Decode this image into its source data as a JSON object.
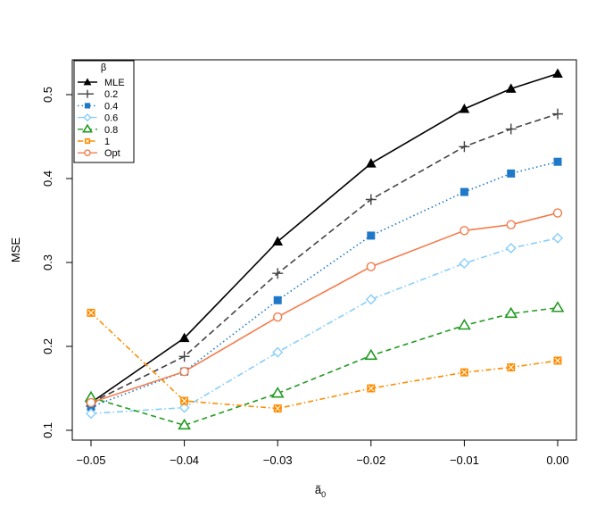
{
  "chart_data": {
    "type": "line",
    "title": "",
    "xlabel": "ã0",
    "xlabel_main": "ã",
    "xlabel_sub": "0",
    "ylabel": "MSE",
    "xlim": [
      -0.05,
      0.0
    ],
    "ylim": [
      0.1,
      0.53
    ],
    "x": [
      -0.05,
      -0.04,
      -0.03,
      -0.02,
      -0.01,
      -0.005,
      0.0
    ],
    "x_ticks": [
      -0.05,
      -0.04,
      -0.03,
      -0.02,
      -0.01,
      0.0
    ],
    "x_tick_labels": [
      "−0.05",
      "−0.04",
      "−0.03",
      "−0.02",
      "−0.01",
      "0.00"
    ],
    "y_ticks": [
      0.1,
      0.2,
      0.3,
      0.4,
      0.5
    ],
    "y_tick_labels": [
      "0.1",
      "0.2",
      "0.3",
      "0.4",
      "0.5"
    ],
    "legend_title": "β",
    "legend_position": "top-left",
    "series": [
      {
        "name": "MLE",
        "color": "#000000",
        "dash": "",
        "marker": "triangle-filled",
        "values": [
          0.133,
          0.21,
          0.325,
          0.418,
          0.483,
          0.507,
          0.525
        ]
      },
      {
        "name": "0.2",
        "color": "#444444",
        "dash": "7,4",
        "marker": "plus",
        "values": [
          0.133,
          0.188,
          0.287,
          0.375,
          0.438,
          0.459,
          0.477
        ]
      },
      {
        "name": "0.4",
        "color": "#1f78c8",
        "dash": "1.5,3",
        "marker": "square-filled",
        "values": [
          0.128,
          0.17,
          0.255,
          0.332,
          0.384,
          0.406,
          0.42
        ]
      },
      {
        "name": "0.6",
        "color": "#87cefa",
        "dash": "7,3,1.5,3",
        "marker": "diamond-open",
        "values": [
          0.12,
          0.127,
          0.193,
          0.256,
          0.299,
          0.317,
          0.329
        ]
      },
      {
        "name": "0.8",
        "color": "#229a22",
        "dash": "6,4",
        "marker": "triangle-open",
        "values": [
          0.139,
          0.106,
          0.144,
          0.189,
          0.225,
          0.239,
          0.246
        ]
      },
      {
        "name": "1",
        "color": "#ff8c00",
        "dash": "6,3,1.5,3",
        "marker": "square-cross",
        "values": [
          0.24,
          0.135,
          0.126,
          0.15,
          0.169,
          0.175,
          0.183
        ]
      },
      {
        "name": "Opt",
        "color": "#f47c4c",
        "dash": "",
        "marker": "circle-open",
        "values": [
          0.133,
          0.17,
          0.235,
          0.295,
          0.338,
          0.345,
          0.359
        ]
      }
    ]
  }
}
